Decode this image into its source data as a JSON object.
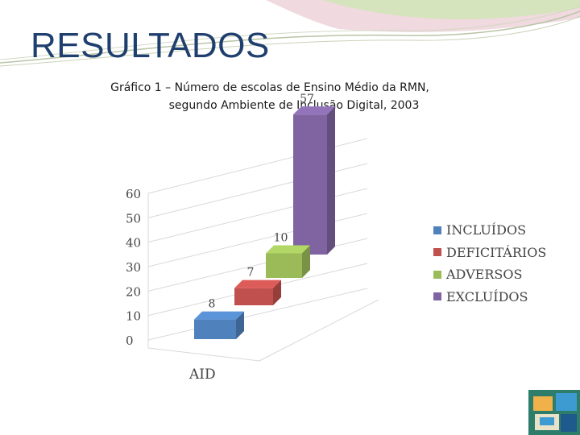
{
  "slide": {
    "title": "RESULTADOS"
  },
  "chart_data": {
    "type": "bar",
    "title_line1": "Gráfico 1 – Número de escolas de Ensino Médio da RMN,",
    "title_line2": "segundo Ambiente de Inclusão Digital, 2003",
    "categories": [
      "AID"
    ],
    "series": [
      {
        "name": "INCLUÍDOS",
        "values": [
          8
        ],
        "color": "#4f81bd"
      },
      {
        "name": "DEFICITÁRIOS",
        "values": [
          7
        ],
        "color": "#c0504d"
      },
      {
        "name": "ADVERSOS",
        "values": [
          10
        ],
        "color": "#9bbb59"
      },
      {
        "name": "EXCLUÍDOS",
        "values": [
          57
        ],
        "color": "#8064a2"
      }
    ],
    "y_ticks": [
      "0",
      "10",
      "20",
      "30",
      "40",
      "50",
      "60"
    ],
    "ylim": [
      0,
      60
    ],
    "grid": true,
    "legend": "right"
  }
}
